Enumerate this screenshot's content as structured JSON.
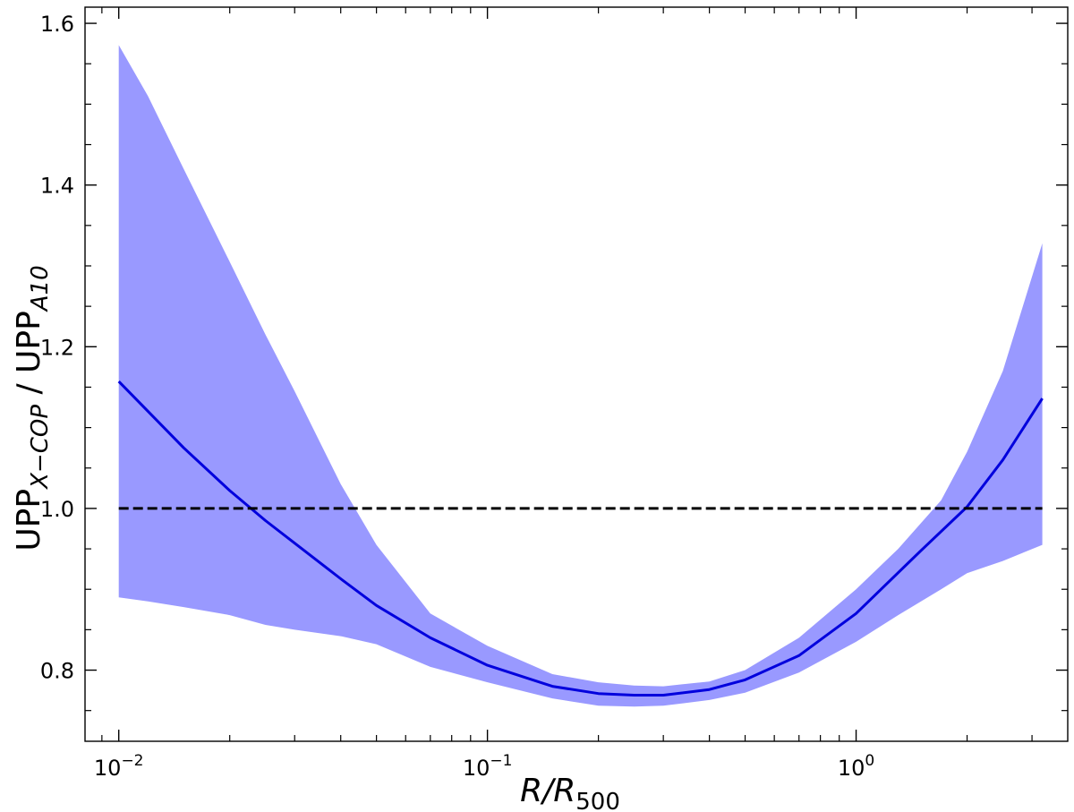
{
  "chart_data": {
    "type": "line",
    "x_scale": "log",
    "xlim": [
      0.0081,
      3.75
    ],
    "ylim": [
      0.712,
      1.62
    ],
    "grid": false,
    "legend": "none",
    "xlabel": {
      "main": "R/R",
      "sub": "500"
    },
    "ylabel": {
      "p1": "UPP",
      "s1": "X−COP",
      "p2": " / UPP",
      "s2": "A10"
    },
    "x_ticks": [
      {
        "value": 0.01,
        "base": "10",
        "exp": "−2"
      },
      {
        "value": 0.1,
        "base": "10",
        "exp": "−1"
      },
      {
        "value": 1,
        "base": "10",
        "exp": "0"
      }
    ],
    "y_ticks": [
      {
        "value": 0.8,
        "label": "0.8"
      },
      {
        "value": 1.0,
        "label": "1.0"
      },
      {
        "value": 1.2,
        "label": "1.2"
      },
      {
        "value": 1.4,
        "label": "1.4"
      },
      {
        "value": 1.6,
        "label": "1.6"
      }
    ],
    "y_minor_step": 0.05,
    "reference_line": {
      "y": 1.0,
      "style": "dashed",
      "color": "#000000"
    },
    "series": [
      {
        "kind": "line",
        "color": "#0000dd",
        "x": [
          0.01,
          0.015,
          0.02,
          0.025,
          0.03,
          0.04,
          0.05,
          0.07,
          0.1,
          0.15,
          0.2,
          0.25,
          0.3,
          0.4,
          0.5,
          0.7,
          1.0,
          1.5,
          2.0,
          2.5,
          3.2
        ],
        "y": [
          1.157,
          1.075,
          1.022,
          0.985,
          0.957,
          0.913,
          0.88,
          0.84,
          0.806,
          0.78,
          0.771,
          0.769,
          0.769,
          0.776,
          0.788,
          0.818,
          0.87,
          0.948,
          1.002,
          1.06,
          1.136
        ]
      },
      {
        "kind": "band",
        "color": "#9999ff",
        "x": [
          0.01,
          0.012,
          0.015,
          0.02,
          0.025,
          0.03,
          0.04,
          0.05,
          0.07,
          0.1,
          0.15,
          0.2,
          0.25,
          0.3,
          0.4,
          0.5,
          0.7,
          1.0,
          1.3,
          1.7,
          2.0,
          2.5,
          3.2
        ],
        "upper": [
          1.573,
          1.51,
          1.42,
          1.305,
          1.215,
          1.145,
          1.03,
          0.955,
          0.87,
          0.83,
          0.795,
          0.785,
          0.781,
          0.78,
          0.786,
          0.8,
          0.84,
          0.9,
          0.95,
          1.01,
          1.07,
          1.17,
          1.328
        ],
        "lower": [
          0.89,
          0.885,
          0.878,
          0.868,
          0.856,
          0.85,
          0.842,
          0.832,
          0.804,
          0.785,
          0.765,
          0.756,
          0.755,
          0.756,
          0.763,
          0.772,
          0.797,
          0.835,
          0.868,
          0.9,
          0.92,
          0.935,
          0.955
        ]
      }
    ]
  }
}
